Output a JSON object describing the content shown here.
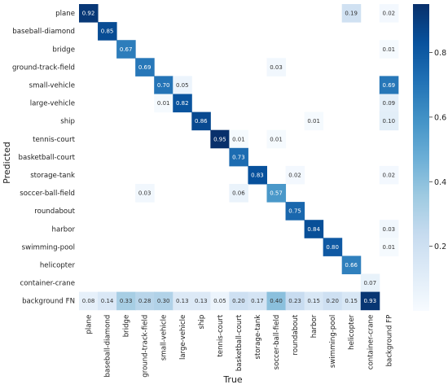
{
  "chart_data": {
    "type": "heatmap",
    "xlabel": "True",
    "ylabel": "Predicted",
    "x_categories": [
      "plane",
      "baseball-diamond",
      "bridge",
      "ground-track-field",
      "small-vehicle",
      "large-vehicle",
      "ship",
      "tennis-court",
      "basketball-court",
      "storage-tank",
      "soccer-ball-field",
      "roundabout",
      "harbor",
      "swimming-pool",
      "helicopter",
      "container-crane",
      "background FP"
    ],
    "y_categories": [
      "plane",
      "baseball-diamond",
      "bridge",
      "ground-track-field",
      "small-vehicle",
      "large-vehicle",
      "ship",
      "tennis-court",
      "basketball-court",
      "storage-tank",
      "soccer-ball-field",
      "roundabout",
      "harbor",
      "swimming-pool",
      "helicopter",
      "container-crane",
      "background FN"
    ],
    "cells": [
      {
        "row": 0,
        "col": 0,
        "value": 0.92
      },
      {
        "row": 0,
        "col": 14,
        "value": 0.19
      },
      {
        "row": 0,
        "col": 16,
        "value": 0.02
      },
      {
        "row": 1,
        "col": 1,
        "value": 0.85
      },
      {
        "row": 2,
        "col": 2,
        "value": 0.67
      },
      {
        "row": 2,
        "col": 16,
        "value": 0.01
      },
      {
        "row": 3,
        "col": 3,
        "value": 0.69
      },
      {
        "row": 3,
        "col": 10,
        "value": 0.03
      },
      {
        "row": 4,
        "col": 4,
        "value": 0.7
      },
      {
        "row": 4,
        "col": 5,
        "value": 0.05
      },
      {
        "row": 4,
        "col": 16,
        "value": 0.69
      },
      {
        "row": 5,
        "col": 4,
        "value": 0.01
      },
      {
        "row": 5,
        "col": 5,
        "value": 0.82
      },
      {
        "row": 5,
        "col": 16,
        "value": 0.09
      },
      {
        "row": 6,
        "col": 6,
        "value": 0.86
      },
      {
        "row": 6,
        "col": 12,
        "value": 0.01
      },
      {
        "row": 6,
        "col": 16,
        "value": 0.1
      },
      {
        "row": 7,
        "col": 7,
        "value": 0.95
      },
      {
        "row": 7,
        "col": 8,
        "value": 0.01
      },
      {
        "row": 7,
        "col": 10,
        "value": 0.01
      },
      {
        "row": 8,
        "col": 8,
        "value": 0.73
      },
      {
        "row": 9,
        "col": 9,
        "value": 0.83
      },
      {
        "row": 9,
        "col": 11,
        "value": 0.02
      },
      {
        "row": 9,
        "col": 16,
        "value": 0.02
      },
      {
        "row": 10,
        "col": 3,
        "value": 0.03
      },
      {
        "row": 10,
        "col": 8,
        "value": 0.06
      },
      {
        "row": 10,
        "col": 10,
        "value": 0.57
      },
      {
        "row": 11,
        "col": 11,
        "value": 0.75
      },
      {
        "row": 12,
        "col": 12,
        "value": 0.84
      },
      {
        "row": 12,
        "col": 16,
        "value": 0.03
      },
      {
        "row": 13,
        "col": 13,
        "value": 0.8
      },
      {
        "row": 13,
        "col": 16,
        "value": 0.01
      },
      {
        "row": 14,
        "col": 14,
        "value": 0.66
      },
      {
        "row": 15,
        "col": 15,
        "value": 0.07
      },
      {
        "row": 16,
        "col": 0,
        "value": 0.08
      },
      {
        "row": 16,
        "col": 1,
        "value": 0.14
      },
      {
        "row": 16,
        "col": 2,
        "value": 0.33
      },
      {
        "row": 16,
        "col": 3,
        "value": 0.28
      },
      {
        "row": 16,
        "col": 4,
        "value": 0.3
      },
      {
        "row": 16,
        "col": 5,
        "value": 0.13
      },
      {
        "row": 16,
        "col": 6,
        "value": 0.13
      },
      {
        "row": 16,
        "col": 7,
        "value": 0.05
      },
      {
        "row": 16,
        "col": 8,
        "value": 0.2
      },
      {
        "row": 16,
        "col": 9,
        "value": 0.17
      },
      {
        "row": 16,
        "col": 10,
        "value": 0.4
      },
      {
        "row": 16,
        "col": 11,
        "value": 0.23
      },
      {
        "row": 16,
        "col": 12,
        "value": 0.15
      },
      {
        "row": 16,
        "col": 13,
        "value": 0.2
      },
      {
        "row": 16,
        "col": 14,
        "value": 0.15
      },
      {
        "row": 16,
        "col": 15,
        "value": 0.93
      }
    ],
    "colorbar": {
      "ticks": [
        "0.2",
        "0.4",
        "0.6",
        "0.8"
      ],
      "range": [
        0,
        0.95
      ],
      "colormap": "Blues",
      "low_color": "#f7fbff",
      "high_color": "#08306b"
    },
    "grid": false,
    "legend": "colorbar-right"
  }
}
